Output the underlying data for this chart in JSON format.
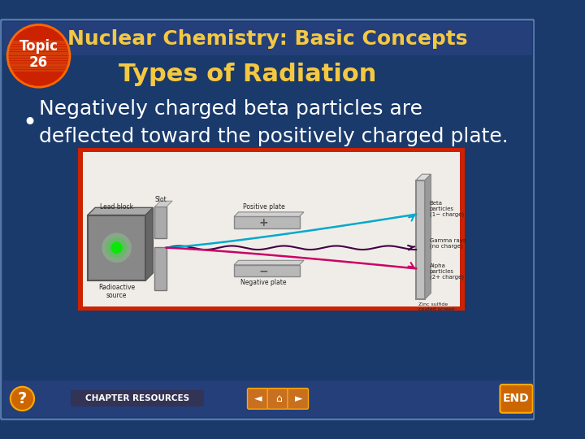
{
  "bg_color": "#1a3a6b",
  "title_text": "Nuclear Chemistry: Basic Concepts",
  "title_color": "#f5c842",
  "title_fontsize": 18,
  "subtitle_text": "Types of Radiation",
  "subtitle_color": "#f5c842",
  "subtitle_fontsize": 22,
  "bullet_text": "Negatively charged beta particles are\ndeflected toward the positively charged plate.",
  "bullet_color": "#ffffff",
  "bullet_fontsize": 18,
  "topic_circle_color_outer": "#cc2200",
  "topic_text": "Topic\n26",
  "topic_text_color": "#ffffff",
  "border_color": "#5577aa",
  "image_border_color": "#cc2200",
  "footer_text": "CHAPTER RESOURCES",
  "footer_text_color": "#ffffff",
  "end_button_color": "#cc6600",
  "end_text": "END",
  "end_text_color": "#ffffff",
  "question_button_color": "#cc6600",
  "header_bar_color": "#243f7a",
  "nav_button_color": "#c87020"
}
